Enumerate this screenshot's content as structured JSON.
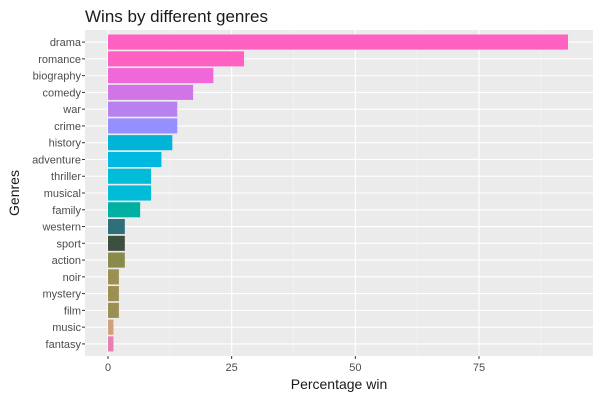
{
  "chart_data": {
    "type": "bar",
    "orientation": "horizontal",
    "title": "Wins by different genres",
    "xlabel": "Percentage win",
    "ylabel": "Genres",
    "xlim": [
      0,
      96
    ],
    "xticks": [
      0,
      25,
      50,
      75
    ],
    "grid": true,
    "legend": "none",
    "categories": [
      "drama",
      "romance",
      "biography",
      "comedy",
      "war",
      "crime",
      "history",
      "adventure",
      "thriller",
      "musical",
      "family",
      "western",
      "sport",
      "action",
      "noir",
      "mystery",
      "film",
      "music",
      "fantasy"
    ],
    "values": [
      93,
      27.5,
      21.3,
      17.2,
      14,
      14,
      13,
      10.8,
      8.7,
      8.7,
      6.5,
      3.4,
      3.4,
      3.4,
      2.2,
      2.2,
      2.2,
      1.1,
      1.1
    ],
    "colors": [
      "#FF61C3",
      "#FF61C3",
      "#EF67D8",
      "#D174E8",
      "#B980F0",
      "#9590FF",
      "#00B4D8",
      "#00B9E3",
      "#00BCD8",
      "#00BCD8",
      "#00B0A0",
      "#2E6F7A",
      "#3D4F3F",
      "#8A8A4A",
      "#9C8F52",
      "#9C8F52",
      "#9C8F52",
      "#D0A07A",
      "#E77FB0"
    ]
  },
  "style": {
    "panel_bg": "#EBEBEB",
    "grid_major": "#FFFFFF",
    "grid_minor": "#F5F5F5"
  }
}
